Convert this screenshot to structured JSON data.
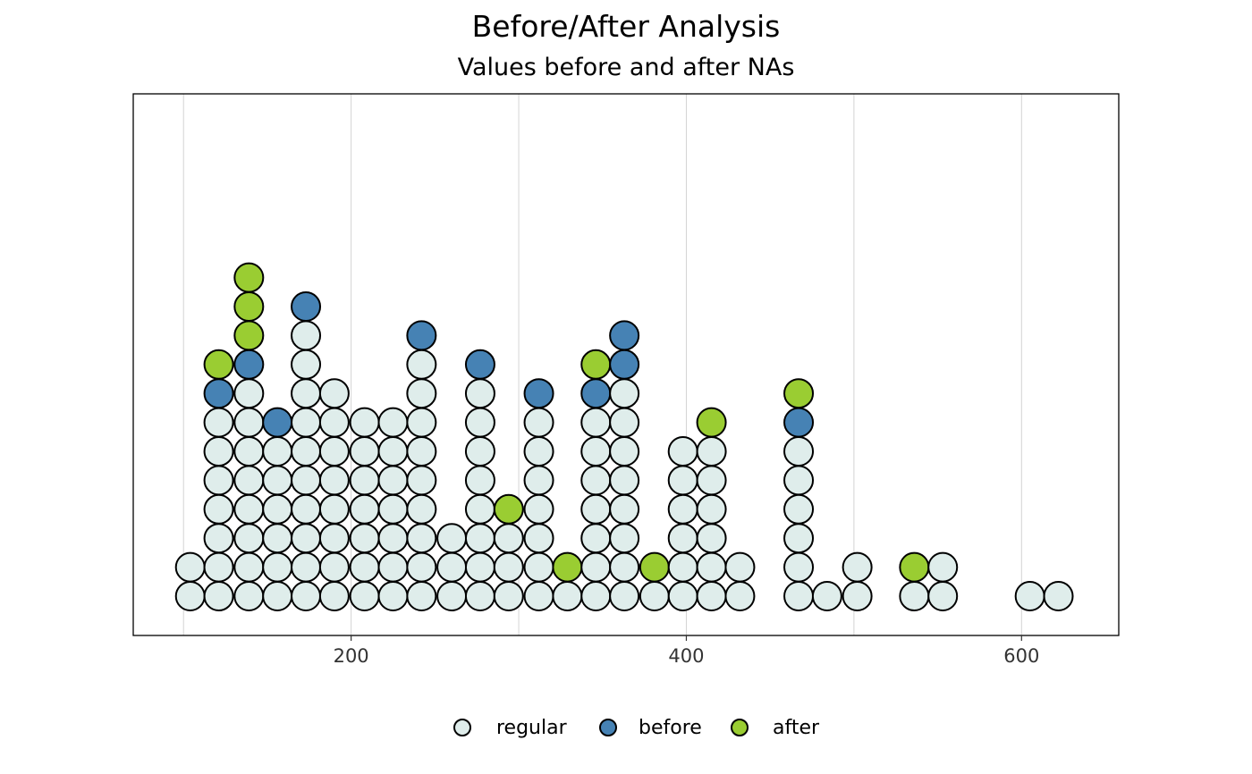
{
  "chart_data": {
    "type": "dotplot",
    "title": "Before/After Analysis",
    "subtitle": "Values before and after NAs",
    "xlabel": "",
    "ylabel": "",
    "xlim": [
      70,
      658
    ],
    "x_ticks": [
      200,
      400,
      600
    ],
    "x_tick_labels": [
      "200",
      "400",
      "600"
    ],
    "grid_x": [
      100,
      200,
      300,
      400,
      500,
      600
    ],
    "legend": {
      "position": "bottom",
      "entries": [
        {
          "key": "regular",
          "label": "regular",
          "color": "#DFEDEB"
        },
        {
          "key": "before",
          "label": "before",
          "color": "#4682B4"
        },
        {
          "key": "after",
          "label": "after",
          "color": "#9ACD32"
        }
      ]
    },
    "stacks": [
      {
        "x": 104,
        "dots": [
          "regular",
          "regular"
        ]
      },
      {
        "x": 121,
        "dots": [
          "regular",
          "regular",
          "regular",
          "regular",
          "regular",
          "regular",
          "regular",
          "before",
          "after"
        ]
      },
      {
        "x": 139,
        "dots": [
          "regular",
          "regular",
          "regular",
          "regular",
          "regular",
          "regular",
          "regular",
          "regular",
          "before",
          "after",
          "after",
          "after"
        ]
      },
      {
        "x": 156,
        "dots": [
          "regular",
          "regular",
          "regular",
          "regular",
          "regular",
          "regular",
          "before"
        ]
      },
      {
        "x": 173,
        "dots": [
          "regular",
          "regular",
          "regular",
          "regular",
          "regular",
          "regular",
          "regular",
          "regular",
          "regular",
          "regular",
          "before"
        ]
      },
      {
        "x": 190,
        "dots": [
          "regular",
          "regular",
          "regular",
          "regular",
          "regular",
          "regular",
          "regular",
          "regular"
        ]
      },
      {
        "x": 208,
        "dots": [
          "regular",
          "regular",
          "regular",
          "regular",
          "regular",
          "regular",
          "regular"
        ]
      },
      {
        "x": 225,
        "dots": [
          "regular",
          "regular",
          "regular",
          "regular",
          "regular",
          "regular",
          "regular"
        ]
      },
      {
        "x": 242,
        "dots": [
          "regular",
          "regular",
          "regular",
          "regular",
          "regular",
          "regular",
          "regular",
          "regular",
          "regular",
          "before"
        ]
      },
      {
        "x": 260,
        "dots": [
          "regular",
          "regular",
          "regular"
        ]
      },
      {
        "x": 277,
        "dots": [
          "regular",
          "regular",
          "regular",
          "regular",
          "regular",
          "regular",
          "regular",
          "regular",
          "before"
        ]
      },
      {
        "x": 294,
        "dots": [
          "regular",
          "regular",
          "regular",
          "after"
        ]
      },
      {
        "x": 312,
        "dots": [
          "regular",
          "regular",
          "regular",
          "regular",
          "regular",
          "regular",
          "regular",
          "before"
        ]
      },
      {
        "x": 329,
        "dots": [
          "regular",
          "after"
        ]
      },
      {
        "x": 346,
        "dots": [
          "regular",
          "regular",
          "regular",
          "regular",
          "regular",
          "regular",
          "regular",
          "before",
          "after"
        ]
      },
      {
        "x": 363,
        "dots": [
          "regular",
          "regular",
          "regular",
          "regular",
          "regular",
          "regular",
          "regular",
          "regular",
          "before",
          "before"
        ]
      },
      {
        "x": 381,
        "dots": [
          "regular",
          "after"
        ]
      },
      {
        "x": 398,
        "dots": [
          "regular",
          "regular",
          "regular",
          "regular",
          "regular",
          "regular"
        ]
      },
      {
        "x": 415,
        "dots": [
          "regular",
          "regular",
          "regular",
          "regular",
          "regular",
          "regular",
          "after"
        ]
      },
      {
        "x": 432,
        "dots": [
          "regular",
          "regular"
        ]
      },
      {
        "x": 467,
        "dots": [
          "regular",
          "regular",
          "regular",
          "regular",
          "regular",
          "regular",
          "before",
          "after"
        ]
      },
      {
        "x": 484,
        "dots": [
          "regular"
        ]
      },
      {
        "x": 502,
        "dots": [
          "regular",
          "regular"
        ]
      },
      {
        "x": 536,
        "dots": [
          "regular",
          "after"
        ]
      },
      {
        "x": 553,
        "dots": [
          "regular",
          "regular"
        ]
      },
      {
        "x": 605,
        "dots": [
          "regular"
        ]
      },
      {
        "x": 622,
        "dots": [
          "regular"
        ]
      }
    ]
  }
}
